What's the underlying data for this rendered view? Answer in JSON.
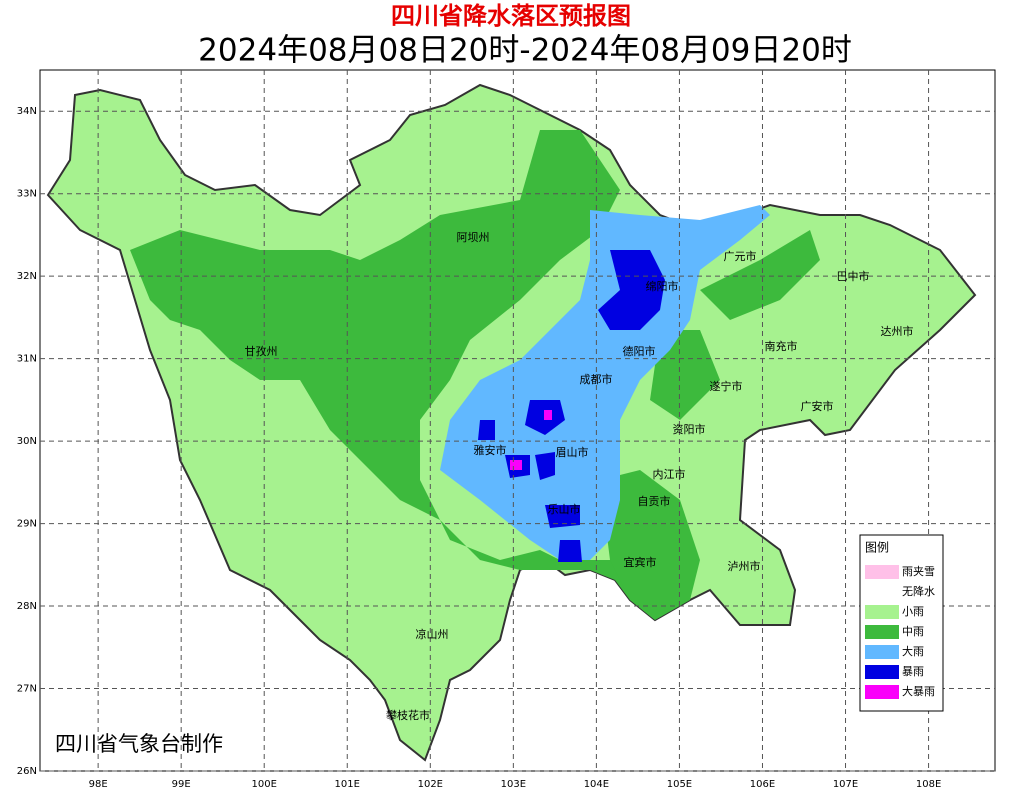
{
  "header": {
    "title": "四川省降水落区预报图",
    "subtitle": "2024年08月08日20时-2024年08月09日20时"
  },
  "map": {
    "lon_ticks": [
      {
        "value": 98,
        "label": "98E"
      },
      {
        "value": 99,
        "label": "99E"
      },
      {
        "value": 100,
        "label": "100E"
      },
      {
        "value": 101,
        "label": "101E"
      },
      {
        "value": 102,
        "label": "102E"
      },
      {
        "value": 103,
        "label": "103E"
      },
      {
        "value": 104,
        "label": "104E"
      },
      {
        "value": 105,
        "label": "105E"
      },
      {
        "value": 106,
        "label": "106E"
      },
      {
        "value": 107,
        "label": "107E"
      },
      {
        "value": 108,
        "label": "108E"
      }
    ],
    "lat_ticks": [
      {
        "value": 26,
        "label": "26N"
      },
      {
        "value": 27,
        "label": "27N"
      },
      {
        "value": 28,
        "label": "28N"
      },
      {
        "value": 29,
        "label": "29N"
      },
      {
        "value": 30,
        "label": "30N"
      },
      {
        "value": 31,
        "label": "31N"
      },
      {
        "value": 32,
        "label": "32N"
      },
      {
        "value": 33,
        "label": "33N"
      },
      {
        "value": 34,
        "label": "34N"
      }
    ],
    "lon_range": [
      97.3,
      108.8
    ],
    "lat_range": [
      26,
      34.5
    ],
    "cities": [
      "阿坝州",
      "广元市",
      "巴中市",
      "绵阳市",
      "达州市",
      "甘孜州",
      "南充市",
      "德阳市",
      "成都市",
      "遂宁市",
      "广安市",
      "资阳市",
      "雅安市",
      "眉山市",
      "内江市",
      "自贡市",
      "乐山市",
      "宜宾市",
      "泸州市",
      "凉山州",
      "攀枝花市"
    ]
  },
  "legend": {
    "title": "图例",
    "items": [
      {
        "label": "雨夹雪",
        "color": "#ffc0e8"
      },
      {
        "label": "无降水",
        "color": "#ffffff"
      },
      {
        "label": "小雨",
        "color": "#a6f28f"
      },
      {
        "label": "中雨",
        "color": "#3dba3d"
      },
      {
        "label": "大雨",
        "color": "#61b8ff"
      },
      {
        "label": "暴雨",
        "color": "#0000e1"
      },
      {
        "label": "大暴雨",
        "color": "#fa00fa"
      }
    ]
  },
  "credit": "四川省气象台制作"
}
